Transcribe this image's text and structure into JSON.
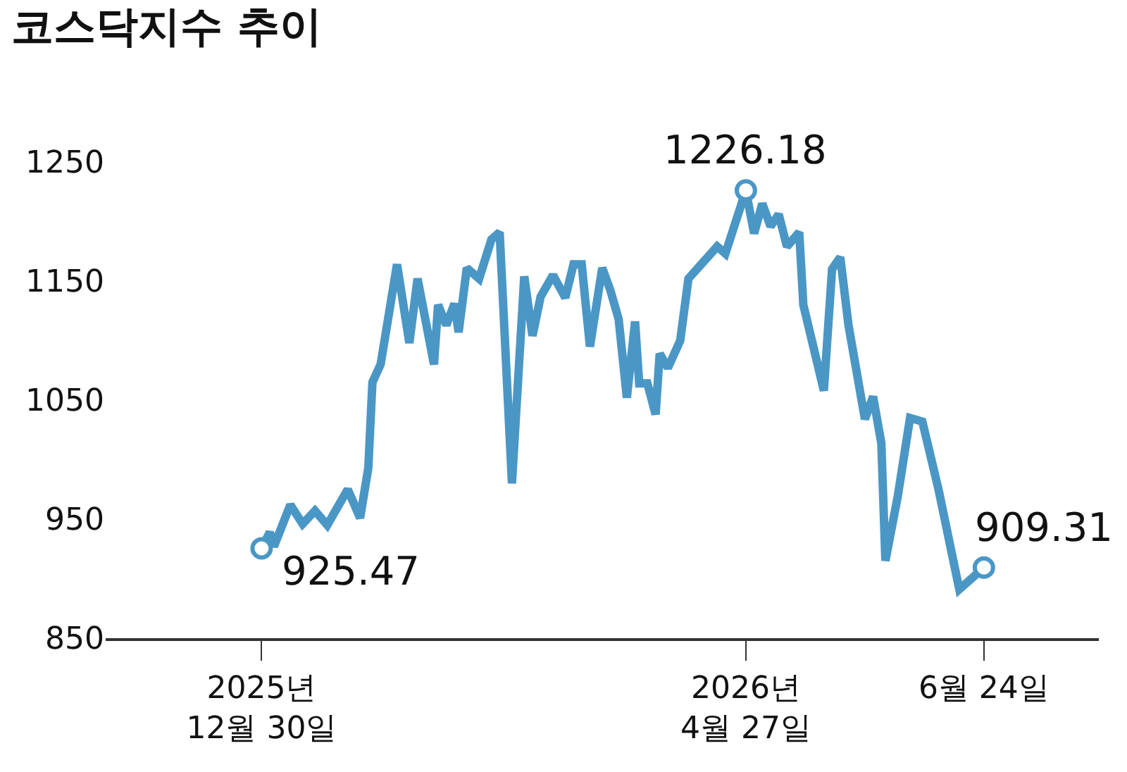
{
  "chart_data": {
    "type": "line",
    "title": "코스닥지수 추이",
    "x": [
      "2025-12-30",
      "2026-01-01",
      "2026-01-02",
      "2026-01-06",
      "2026-01-09",
      "2026-01-12",
      "2026-01-15",
      "2026-01-20",
      "2026-01-23",
      "2026-01-25",
      "2026-01-26",
      "2026-01-28",
      "2026-02-01",
      "2026-02-04",
      "2026-02-06",
      "2026-02-10",
      "2026-02-11",
      "2026-02-13",
      "2026-02-15",
      "2026-02-16",
      "2026-02-18",
      "2026-02-21",
      "2026-02-24",
      "2026-02-26",
      "2026-03-01",
      "2026-03-04",
      "2026-03-06",
      "2026-03-08",
      "2026-03-11",
      "2026-03-14",
      "2026-03-16",
      "2026-03-18",
      "2026-03-20",
      "2026-03-23",
      "2026-03-25",
      "2026-03-27",
      "2026-03-29",
      "2026-03-31",
      "2026-04-01",
      "2026-04-03",
      "2026-04-05",
      "2026-04-06",
      "2026-04-08",
      "2026-04-11",
      "2026-04-13",
      "2026-04-20",
      "2026-04-22",
      "2026-04-27",
      "2026-04-29",
      "2026-05-01",
      "2026-05-03",
      "2026-05-05",
      "2026-05-07",
      "2026-05-10",
      "2026-05-11",
      "2026-05-16",
      "2026-05-18",
      "2026-05-20",
      "2026-05-22",
      "2026-05-26",
      "2026-05-28",
      "2026-05-30",
      "2026-05-31",
      "2026-06-03",
      "2026-06-06",
      "2026-06-09",
      "2026-06-13",
      "2026-06-18",
      "2026-06-24"
    ],
    "series": [
      {
        "color": "#4a97c6",
        "values": [
          925.47,
          939,
          927,
          962,
          946,
          957,
          945,
          975,
          951,
          993,
          1065,
          1080,
          1164,
          1098,
          1152,
          1080,
          1130,
          1113,
          1131,
          1107,
          1161,
          1152,
          1185,
          1191,
          980,
          1154,
          1104,
          1137,
          1155,
          1136,
          1164,
          1164,
          1095,
          1161,
          1142,
          1118,
          1052,
          1116,
          1064,
          1064,
          1038,
          1089,
          1077,
          1100,
          1152,
          1179,
          1173,
          1226.18,
          1190,
          1215,
          1196,
          1206,
          1179,
          1191,
          1130,
          1058,
          1160,
          1170,
          1113,
          1034,
          1053,
          1014,
          915,
          969,
          1035,
          1032,
          974,
          891,
          909.31
        ]
      }
    ],
    "xlim": [
      "2025-11-22",
      "2026-07-22"
    ],
    "xticks": [
      {
        "value": "2025-12-30",
        "label": "2025년\n12월 30일"
      },
      {
        "value": "2026-04-27",
        "label": "2026년\n4월 27일"
      },
      {
        "value": "2026-06-24",
        "label": "6월 24일"
      }
    ],
    "ylim": [
      850,
      1250
    ],
    "yticks": [
      850,
      950,
      1050,
      1150,
      1250
    ],
    "grid": false,
    "line_style": "solid",
    "marker": "none",
    "annotations": [
      {
        "text": "925.47",
        "x": "2025-12-30",
        "y": 925.47
      },
      {
        "text": "1226.18",
        "x": "2026-04-27",
        "y": 1226.18
      },
      {
        "text": "909.31",
        "x": "2026-06-24",
        "y": 909.31
      }
    ]
  }
}
